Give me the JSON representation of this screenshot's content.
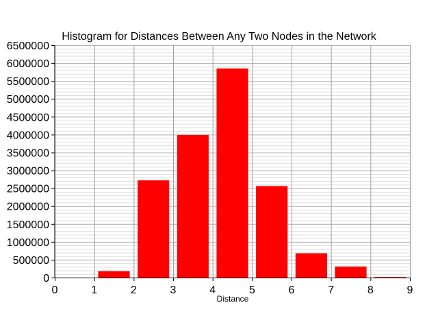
{
  "chart_data": {
    "type": "bar",
    "title": "Histogram for Distances Between Any Two Nodes in the Network",
    "xlabel": "Distance",
    "ylabel": "",
    "xlim": [
      0,
      9
    ],
    "ylim": [
      0,
      6500000
    ],
    "x_ticks": [
      0,
      1,
      2,
      3,
      4,
      5,
      6,
      7,
      8,
      9
    ],
    "y_ticks": [
      0,
      500000,
      1000000,
      1500000,
      2000000,
      2500000,
      3000000,
      3500000,
      4000000,
      4500000,
      5000000,
      5500000,
      6000000,
      6500000
    ],
    "grid": true,
    "bar_color": "#ff0000",
    "bars": [
      {
        "x": 1,
        "value": 180000
      },
      {
        "x": 2,
        "value": 2720000
      },
      {
        "x": 3,
        "value": 3990000
      },
      {
        "x": 4,
        "value": 5850000
      },
      {
        "x": 5,
        "value": 2560000
      },
      {
        "x": 6,
        "value": 680000
      },
      {
        "x": 7,
        "value": 310000
      },
      {
        "x": 8,
        "value": 10000
      }
    ]
  }
}
